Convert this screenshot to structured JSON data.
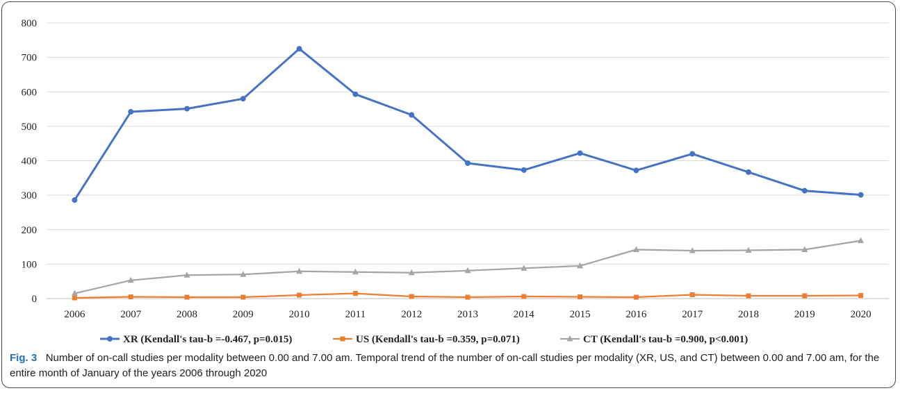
{
  "figure": {
    "label": "Fig. 3",
    "caption": "Number of on-call studies per modality between 0.00 and 7.00 am. Temporal trend of the number of on-call studies per modality (XR, US, and CT) between 0.00 and 7.00 am, for the entire month of January of the years 2006 through 2020"
  },
  "chart_data": {
    "type": "line",
    "title": "",
    "xlabel": "",
    "ylabel": "",
    "categories": [
      "2006",
      "2007",
      "2008",
      "2009",
      "2010",
      "2011",
      "2012",
      "2013",
      "2014",
      "2015",
      "2016",
      "2017",
      "2018",
      "2019",
      "2020"
    ],
    "ylim": [
      0,
      800
    ],
    "yticks": [
      0,
      100,
      200,
      300,
      400,
      500,
      600,
      700,
      800
    ],
    "grid": "horizontal",
    "legend_position": "bottom",
    "series": [
      {
        "name": "XR (Kendall's tau-b =-0.467, p=0.015)",
        "color": "#4472c4",
        "marker": "circle",
        "values": [
          286,
          542,
          551,
          580,
          725,
          593,
          533,
          393,
          373,
          422,
          372,
          420,
          367,
          313,
          301
        ]
      },
      {
        "name": "US (Kendall's tau-b =0.359, p=0.071)",
        "color": "#ed7d31",
        "marker": "square",
        "values": [
          2,
          5,
          4,
          4,
          10,
          15,
          6,
          4,
          6,
          5,
          4,
          11,
          8,
          8,
          9
        ]
      },
      {
        "name": "CT (Kendall's tau-b =0.900, p<0.001)",
        "color": "#a5a5a5",
        "marker": "triangle",
        "values": [
          15,
          53,
          68,
          70,
          79,
          77,
          75,
          81,
          88,
          95,
          142,
          139,
          140,
          142,
          168
        ]
      }
    ]
  }
}
